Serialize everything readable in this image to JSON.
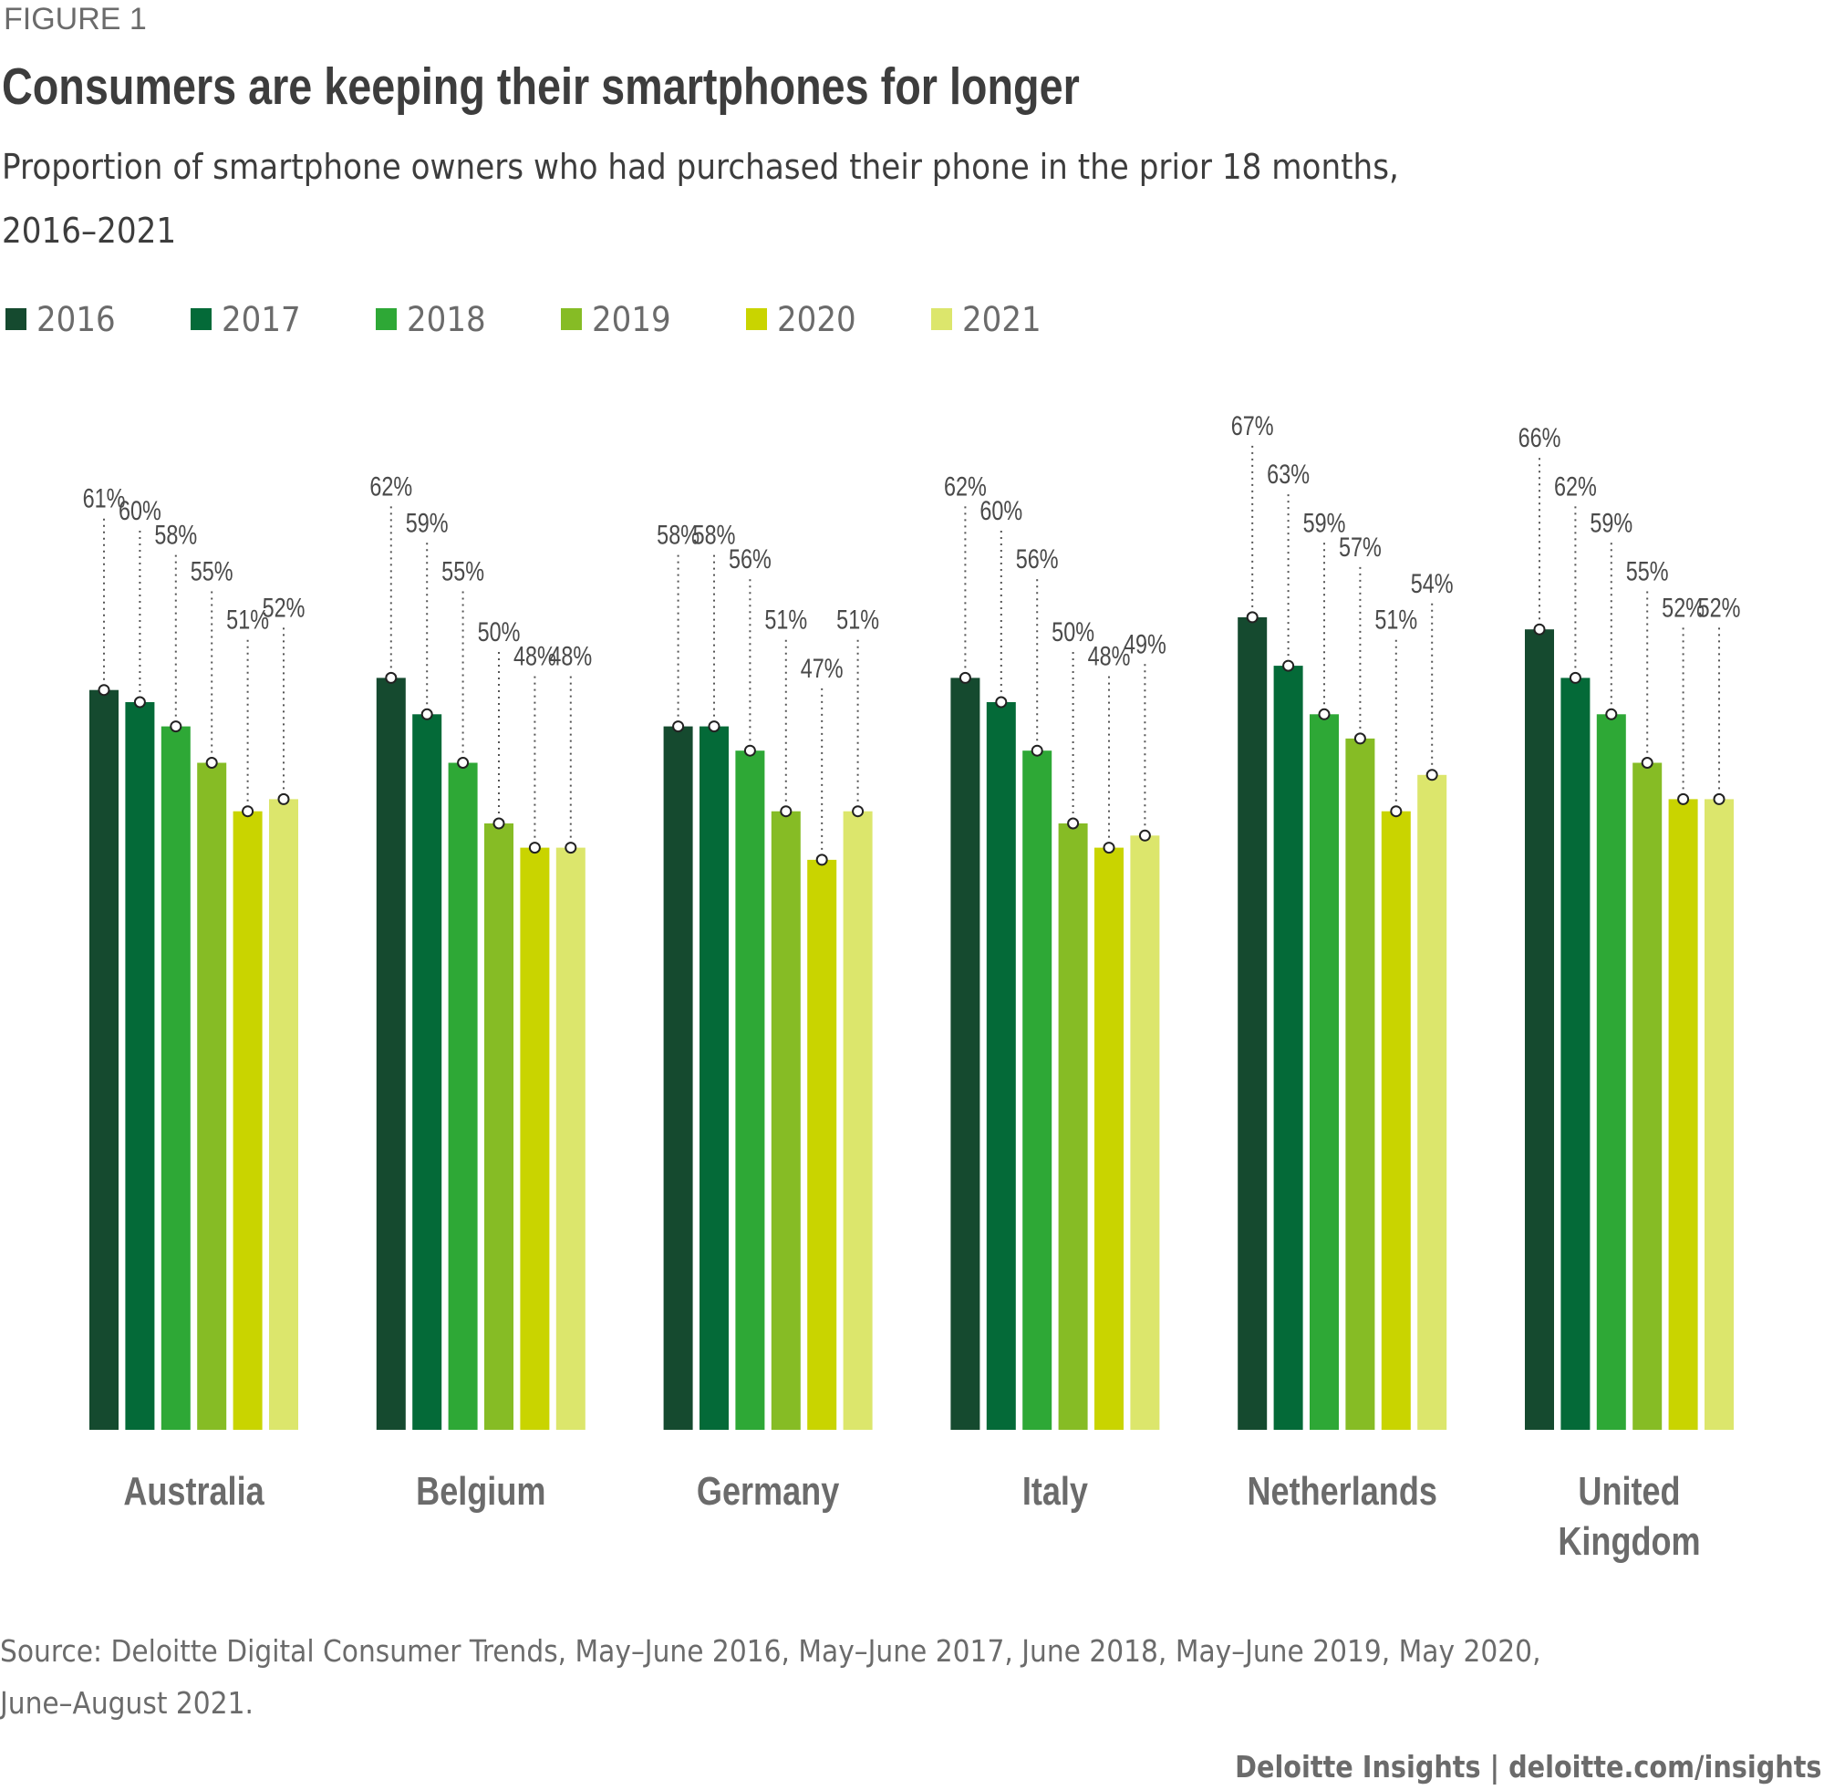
{
  "figure_label": "FIGURE 1",
  "title": "Consumers are keeping their smartphones for longer",
  "subtitle": "Proportion of smartphone owners who had purchased their phone in the prior 18 months, 2016–2021",
  "source": "Source: Deloitte Digital Consumer Trends, May–June 2016, May–June 2017, June 2018, May–June 2019, May 2020, June–August 2021.",
  "footer": "Deloitte Insights | deloitte.com/insights",
  "chart_data": {
    "type": "bar",
    "title": "Consumers are keeping their smartphones for longer",
    "subtitle": "Proportion of smartphone owners who had purchased their phone in the prior 18 months, 2016–2021",
    "xlabel": "",
    "ylabel": "",
    "ylim": [
      0,
      100
    ],
    "grid": false,
    "legend_position": "top-left",
    "value_suffix": "%",
    "categories": [
      "Australia",
      "Belgium",
      "Germany",
      "Italy",
      "Netherlands",
      "United Kingdom"
    ],
    "category_lines": [
      [
        "Australia"
      ],
      [
        "Belgium"
      ],
      [
        "Germany"
      ],
      [
        "Italy"
      ],
      [
        "Netherlands"
      ],
      [
        "United",
        "Kingdom"
      ]
    ],
    "series": [
      {
        "name": "2016",
        "color": "#154A2F",
        "values": [
          61,
          62,
          58,
          62,
          67,
          66
        ]
      },
      {
        "name": "2017",
        "color": "#046A38",
        "values": [
          60,
          59,
          58,
          60,
          63,
          62
        ]
      },
      {
        "name": "2018",
        "color": "#2EA836",
        "values": [
          58,
          55,
          56,
          56,
          59,
          59
        ]
      },
      {
        "name": "2019",
        "color": "#86BC25",
        "values": [
          55,
          50,
          51,
          50,
          57,
          55
        ]
      },
      {
        "name": "2020",
        "color": "#C9D400",
        "values": [
          51,
          48,
          47,
          48,
          51,
          52
        ]
      },
      {
        "name": "2021",
        "color": "#DCE66C",
        "values": [
          52,
          48,
          51,
          49,
          54,
          52
        ]
      }
    ]
  }
}
